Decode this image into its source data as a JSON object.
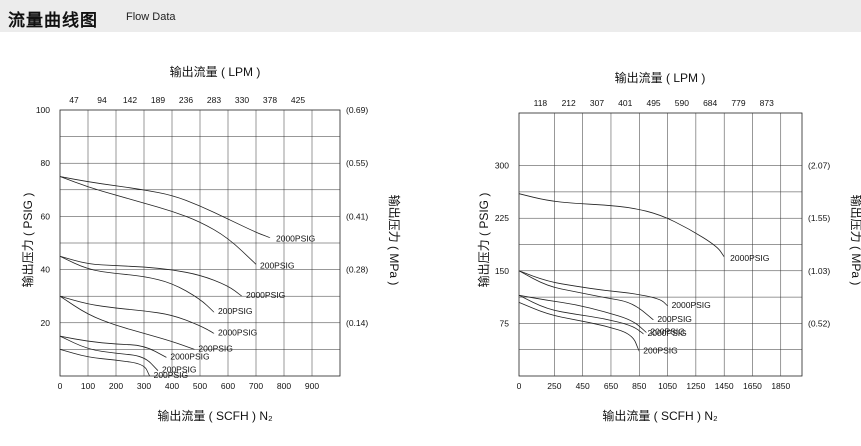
{
  "header": {
    "title": "流量曲线图",
    "subtitle": "Flow Data"
  },
  "chart_data": [
    {
      "type": "line",
      "top_axis_title": "输出流量 ( LPM )",
      "xlabel": "输出流量 ( SCFH ) N₂",
      "ylabel": "输出压力 ( PSIG )",
      "y2label": "输出压力 ( MPa )",
      "xlim": [
        0,
        1000
      ],
      "ylim": [
        0,
        100
      ],
      "x_ticks": [
        0,
        100,
        200,
        300,
        400,
        500,
        600,
        700,
        800,
        900
      ],
      "top_ticks": [
        {
          "x": 100,
          "label": "47"
        },
        {
          "x": 200,
          "label": "94"
        },
        {
          "x": 300,
          "label": "142"
        },
        {
          "x": 400,
          "label": "189"
        },
        {
          "x": 500,
          "label": "236"
        },
        {
          "x": 600,
          "label": "283"
        },
        {
          "x": 700,
          "label": "330"
        },
        {
          "x": 800,
          "label": "378"
        },
        {
          "x": 900,
          "label": "425"
        }
      ],
      "y_ticks": [
        20,
        40,
        60,
        80,
        100
      ],
      "y2_ticks": [
        {
          "y": 100,
          "label": "(0.69)"
        },
        {
          "y": 80,
          "label": "(0.55)"
        },
        {
          "y": 60,
          "label": "(0.41)"
        },
        {
          "y": 40,
          "label": "(0.28)"
        },
        {
          "y": 20,
          "label": "(0.14)"
        }
      ],
      "grid": true,
      "series": [
        {
          "name": "2000PSIG",
          "x": [
            0,
            100,
            200,
            300,
            400,
            500,
            600,
            700,
            750
          ],
          "y": [
            75,
            73,
            71.5,
            70,
            68,
            64,
            59,
            54,
            52
          ]
        },
        {
          "name": "200PSIG",
          "x": [
            0,
            100,
            200,
            300,
            400,
            500,
            600,
            700
          ],
          "y": [
            75,
            71,
            68,
            65,
            62,
            58,
            52,
            42
          ]
        },
        {
          "name": "2000PSIG",
          "x": [
            0,
            100,
            200,
            300,
            400,
            500,
            600,
            650
          ],
          "y": [
            45,
            42,
            41.5,
            41,
            40,
            38,
            34,
            30
          ]
        },
        {
          "name": "200PSIG",
          "x": [
            0,
            100,
            200,
            300,
            400,
            500,
            550
          ],
          "y": [
            45,
            40,
            38.5,
            37.5,
            35,
            29,
            24
          ]
        },
        {
          "name": "2000PSIG",
          "x": [
            0,
            100,
            200,
            300,
            400,
            500,
            550
          ],
          "y": [
            30,
            27,
            25.5,
            24.5,
            23,
            19,
            16
          ]
        },
        {
          "name": "200PSIG",
          "x": [
            0,
            100,
            200,
            300,
            400,
            480
          ],
          "y": [
            30,
            23,
            19,
            16,
            13,
            10
          ]
        },
        {
          "name": "2000PSIG",
          "x": [
            0,
            100,
            200,
            300,
            380
          ],
          "y": [
            15,
            13,
            12,
            11.5,
            7
          ]
        },
        {
          "name": "200PSIG",
          "x": [
            0,
            100,
            200,
            300,
            350
          ],
          "y": [
            15,
            10,
            8.5,
            7.5,
            2
          ]
        },
        {
          "name": "200PSIG",
          "x": [
            0,
            100,
            200,
            300,
            320
          ],
          "y": [
            10,
            7,
            6,
            4.5,
            0
          ]
        }
      ]
    },
    {
      "type": "line",
      "top_axis_title": "输出流量 ( LPM )",
      "xlabel": "输出流量 ( SCFH ) N₂",
      "ylabel": "输出压力 ( PSIG )",
      "y2label": "输出压力 ( MPa )",
      "xlim": [
        0,
        2000
      ],
      "ylim": [
        0,
        375
      ],
      "x_ticks": [
        0,
        250,
        450,
        650,
        850,
        1050,
        1250,
        1450,
        1650,
        1850
      ],
      "top_ticks": [
        {
          "x": 250,
          "label": "118"
        },
        {
          "x": 450,
          "label": "212"
        },
        {
          "x": 650,
          "label": "307"
        },
        {
          "x": 850,
          "label": "401"
        },
        {
          "x": 1050,
          "label": "495"
        },
        {
          "x": 1250,
          "label": "590"
        },
        {
          "x": 1450,
          "label": "684"
        },
        {
          "x": 1650,
          "label": "779"
        },
        {
          "x": 1850,
          "label": "873"
        }
      ],
      "y_ticks": [
        75,
        150,
        225,
        300
      ],
      "y2_ticks": [
        {
          "y": 300,
          "label": "(2.07)"
        },
        {
          "y": 225,
          "label": "(1.55)"
        },
        {
          "y": 150,
          "label": "(1.03)"
        },
        {
          "y": 75,
          "label": "(0.52)"
        }
      ],
      "grid": true,
      "series": [
        {
          "name": "2000PSIG",
          "x": [
            0,
            200,
            400,
            600,
            800,
            1000,
            1200,
            1400,
            1450
          ],
          "y": [
            260,
            250,
            246,
            244,
            240,
            230,
            210,
            185,
            170
          ]
        },
        {
          "name": "2000PSIG",
          "x": [
            0,
            200,
            400,
            600,
            800,
            1000,
            1050
          ],
          "y": [
            150,
            135,
            128,
            122,
            118,
            110,
            100
          ]
        },
        {
          "name": "200PSIG",
          "x": [
            0,
            200,
            400,
            600,
            800,
            950
          ],
          "y": [
            150,
            128,
            120,
            112,
            105,
            80
          ]
        },
        {
          "name": "200PSIG",
          "x": [
            0,
            200,
            400,
            600,
            800,
            900
          ],
          "y": [
            115,
            108,
            102,
            92,
            80,
            62
          ]
        },
        {
          "name": "2000PSIG",
          "x": [
            0,
            200,
            400,
            600,
            800,
            880
          ],
          "y": [
            115,
            95,
            88,
            82,
            72,
            60
          ]
        },
        {
          "name": "200PSIG",
          "x": [
            0,
            200,
            400,
            600,
            800,
            850
          ],
          "y": [
            105,
            88,
            80,
            72,
            60,
            35
          ]
        }
      ]
    }
  ]
}
